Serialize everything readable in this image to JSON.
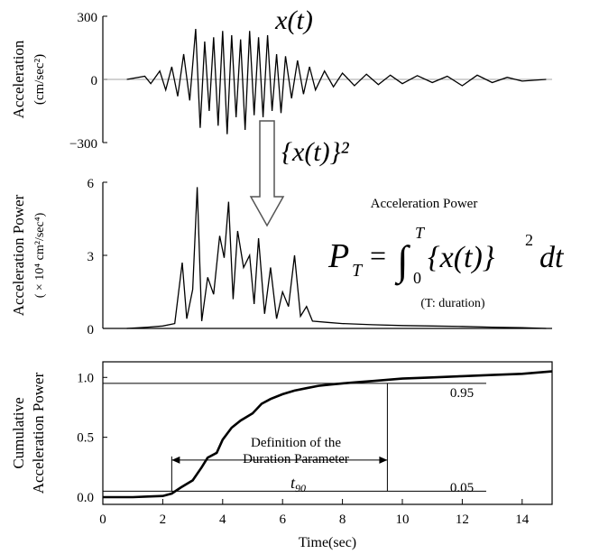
{
  "figure": {
    "top_panel": {
      "ylabel_line1": "Acceleration",
      "ylabel_line2": "(cm/sec²)",
      "y_ticks": [
        "300",
        "0",
        "−300"
      ],
      "title": "x(t)"
    },
    "arrow_label": "{x(t)}²",
    "middle_panel": {
      "ylabel_line1": "Acceleration Power",
      "ylabel_line2": "( × 10⁴ cm²/sec⁴)",
      "y_ticks": [
        "6",
        "3",
        "0"
      ],
      "power_title": "Acceleration Power",
      "formula_lhs": "P",
      "formula_sub": "T",
      "formula_eq": "=",
      "formula_int": "∫",
      "formula_upper": "T",
      "formula_lower": "0",
      "formula_body": "{x(t)}",
      "formula_sq": "2",
      "formula_dt": "dt",
      "duration_note": "(T: duration)"
    },
    "bottom_panel": {
      "ylabel_line1": "Cumulative",
      "ylabel_line2": "Acceleration Power",
      "y_ticks": [
        "1.0",
        "0.5",
        "0.0"
      ],
      "x_ticks": [
        "0",
        "2",
        "4",
        "6",
        "8",
        "10",
        "12",
        "14"
      ],
      "xlabel": "Time(sec)",
      "label_095": "0.95",
      "label_005": "0.05",
      "definition_line1": "Definition of the",
      "definition_line2": "Duration Parameter",
      "t90_label": "t",
      "t90_sub": "90"
    }
  },
  "chart_data": [
    {
      "type": "line",
      "title": "x(t)",
      "xlabel": "",
      "ylabel": "Acceleration (cm/sec²)",
      "xlim": [
        0,
        15
      ],
      "ylim": [
        -300,
        300
      ],
      "grid": false,
      "series": [
        {
          "x": [
            0.8,
            1.4,
            1.6,
            1.9,
            2.1,
            2.3,
            2.5,
            2.7,
            2.9,
            3.1,
            3.25,
            3.4,
            3.55,
            3.7,
            3.85,
            4.0,
            4.15,
            4.3,
            4.45,
            4.6,
            4.75,
            4.9,
            5.05,
            5.2,
            5.35,
            5.5,
            5.65,
            5.8,
            5.95,
            6.1,
            6.3,
            6.5,
            6.7,
            6.9,
            7.1,
            7.4,
            7.7,
            8.0,
            8.4,
            8.8,
            9.2,
            9.6,
            10.0,
            10.5,
            11.0,
            11.5,
            12.0,
            12.5,
            13.0,
            13.5,
            14.0,
            14.8
          ],
          "y": [
            0,
            15,
            -20,
            40,
            -50,
            60,
            -80,
            120,
            -100,
            240,
            -230,
            180,
            -150,
            200,
            -220,
            230,
            -260,
            210,
            -180,
            190,
            -240,
            230,
            -170,
            200,
            -180,
            210,
            -150,
            120,
            -160,
            110,
            -90,
            90,
            -70,
            60,
            -50,
            40,
            -35,
            30,
            -30,
            25,
            -25,
            20,
            -20,
            18,
            -15,
            15,
            -30,
            20,
            -15,
            10,
            -8,
            0
          ]
        }
      ]
    },
    {
      "type": "line",
      "title": "Acceleration Power",
      "xlabel": "",
      "ylabel": "Acceleration Power (× 10⁴ cm²/sec⁴)",
      "xlim": [
        0,
        15
      ],
      "ylim": [
        0,
        6
      ],
      "grid": false,
      "series": [
        {
          "x": [
            0.8,
            1.5,
            2.0,
            2.4,
            2.65,
            2.8,
            3.0,
            3.15,
            3.3,
            3.5,
            3.7,
            3.9,
            4.05,
            4.2,
            4.35,
            4.5,
            4.7,
            4.9,
            5.05,
            5.2,
            5.4,
            5.6,
            5.8,
            6.0,
            6.2,
            6.4,
            6.6,
            6.8,
            7.0,
            7.5,
            8.0,
            9.0,
            10.0,
            11.0,
            12.0,
            13.0,
            14.0,
            14.8
          ],
          "y": [
            0,
            0.05,
            0.1,
            0.2,
            2.7,
            0.4,
            1.6,
            5.8,
            0.3,
            2.1,
            1.4,
            3.8,
            2.9,
            5.2,
            1.2,
            4.0,
            2.5,
            3.0,
            1.0,
            3.7,
            0.6,
            2.5,
            0.4,
            1.5,
            0.9,
            3.0,
            0.5,
            0.9,
            0.3,
            0.25,
            0.2,
            0.15,
            0.12,
            0.1,
            0.08,
            0.05,
            0.03,
            0
          ]
        }
      ]
    },
    {
      "type": "line",
      "title": "",
      "xlabel": "Time(sec)",
      "ylabel": "Cumulative Acceleration Power",
      "xlim": [
        0,
        15
      ],
      "ylim": [
        0,
        1.1
      ],
      "grid": false,
      "series": [
        {
          "x": [
            0,
            1.0,
            1.5,
            2.0,
            2.3,
            2.6,
            3.0,
            3.3,
            3.5,
            3.8,
            4.0,
            4.3,
            4.6,
            5.0,
            5.3,
            5.6,
            6.0,
            6.4,
            6.8,
            7.2,
            7.6,
            8.0,
            8.5,
            9.0,
            9.5,
            10.0,
            11.0,
            12.0,
            13.0,
            14.0,
            15.0
          ],
          "y": [
            0,
            0,
            0.005,
            0.01,
            0.03,
            0.08,
            0.14,
            0.25,
            0.33,
            0.37,
            0.48,
            0.58,
            0.64,
            0.7,
            0.78,
            0.82,
            0.86,
            0.89,
            0.91,
            0.93,
            0.94,
            0.95,
            0.96,
            0.97,
            0.98,
            0.99,
            1.0,
            1.01,
            1.02,
            1.03,
            1.05
          ]
        }
      ],
      "reference_levels": [
        0.95,
        0.05
      ],
      "t_start": 2.3,
      "t_end": 9.5
    }
  ]
}
